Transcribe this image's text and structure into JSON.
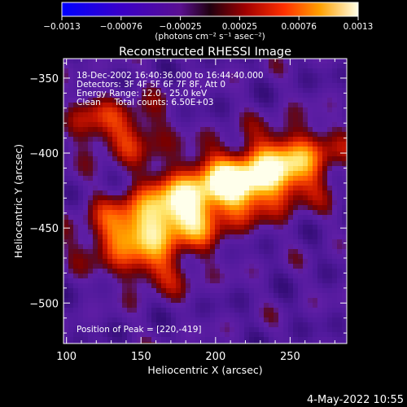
{
  "colorbar": {
    "ticks": [
      "−0.0013",
      "−0.00076",
      "−0.00025",
      "0.00025",
      "0.00076",
      "0.0013"
    ],
    "unit_label": "(photons cm⁻² s⁻¹ asec⁻²)",
    "range": [
      -0.0013,
      0.0013
    ]
  },
  "chart_data": {
    "type": "heatmap",
    "title": "Reconstructed RHESSI Image",
    "xlabel": "Heliocentric X (arcsec)",
    "ylabel": "Heliocentric Y (arcsec)",
    "xlim": [
      98,
      288
    ],
    "ylim": [
      -527,
      -337
    ],
    "xticks": [
      100,
      150,
      200,
      250
    ],
    "yticks": [
      -350,
      -400,
      -450,
      -500
    ],
    "xtick_labels": [
      "100",
      "150",
      "200",
      "250"
    ],
    "ytick_labels": [
      "−350",
      "−400",
      "−450",
      "−500"
    ],
    "annotation_lines": [
      "18-Dec-2002 16:40:36.000 to 16:44:40.000",
      "Detectors: 3F 4F 5F 6F 7F 8F, Att 0",
      "Energy Range: 12.0 - 25.0 keV",
      "Clean     Total counts: 6.50E+03"
    ],
    "peak_label": "Position of Peak = [220,-419]",
    "peak": [
      220,
      -419
    ],
    "sources": [
      {
        "x": 220,
        "y": -419,
        "amp": 1.0,
        "sx": 28,
        "sy": 14
      },
      {
        "x": 175,
        "y": -440,
        "amp": 0.85,
        "sx": 24,
        "sy": 16
      },
      {
        "x": 255,
        "y": -400,
        "amp": 0.55,
        "sx": 22,
        "sy": 14
      },
      {
        "x": 140,
        "y": -455,
        "amp": 0.6,
        "sx": 22,
        "sy": 14
      },
      {
        "x": 145,
        "y": -385,
        "amp": 0.45,
        "sx": 16,
        "sy": 14
      },
      {
        "x": 115,
        "y": -380,
        "amp": 0.35,
        "sx": 12,
        "sy": 14
      },
      {
        "x": 160,
        "y": -480,
        "amp": 0.35,
        "sx": 20,
        "sy": 10
      }
    ]
  },
  "footer": {
    "timestamp": "4-May-2022 10:55"
  }
}
